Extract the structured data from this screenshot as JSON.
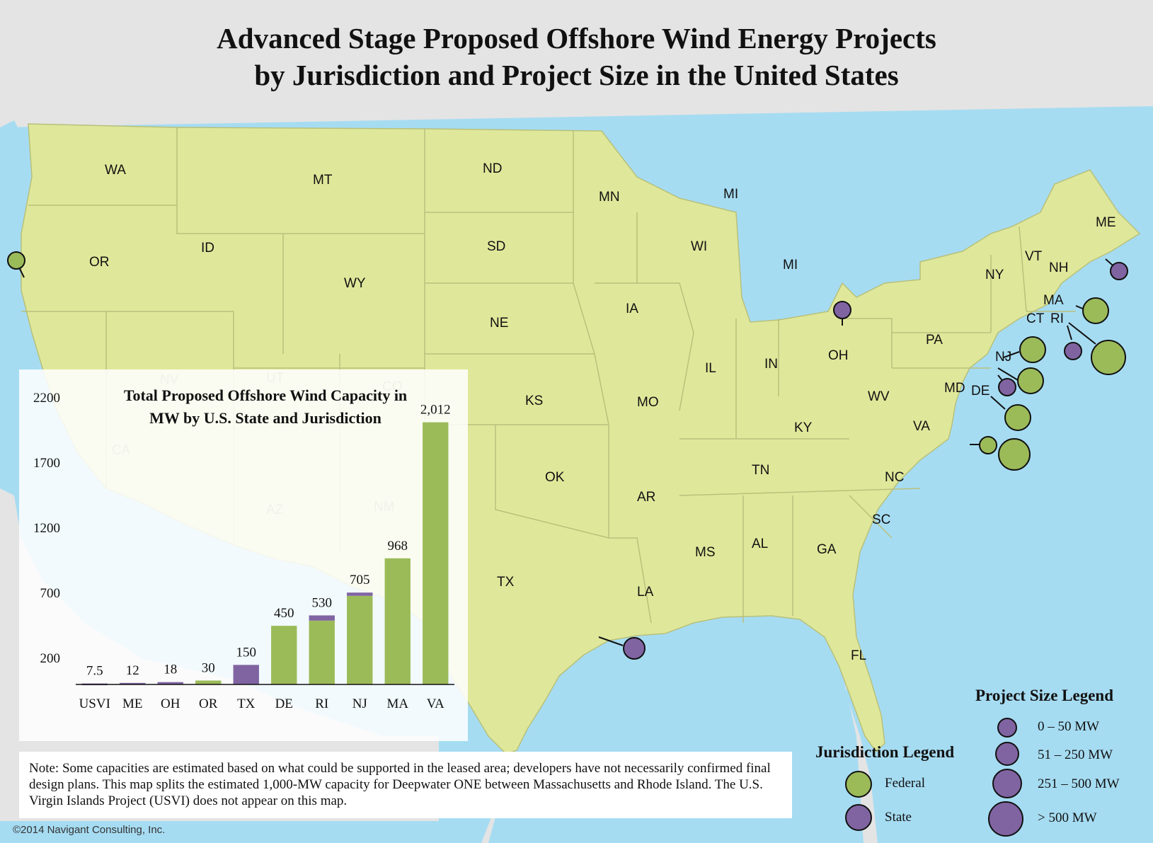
{
  "title": {
    "line1": "Advanced Stage Proposed Offshore Wind Energy Projects",
    "line2": "by Jurisdiction and Project Size in the United States"
  },
  "map": {
    "state_labels": [
      "WA",
      "OR",
      "ID",
      "MT",
      "WY",
      "NV",
      "UT",
      "CO",
      "CA",
      "AZ",
      "NM",
      "ND",
      "SD",
      "NE",
      "KS",
      "OK",
      "TX",
      "MN",
      "IA",
      "MO",
      "AR",
      "LA",
      "WI",
      "IL",
      "MI",
      "MI",
      "IN",
      "OH",
      "KY",
      "TN",
      "MS",
      "AL",
      "GA",
      "FL",
      "SC",
      "NC",
      "VA",
      "WV",
      "PA",
      "NY",
      "VT",
      "NH",
      "ME",
      "MA",
      "CT",
      "RI",
      "NJ",
      "DE",
      "MD"
    ],
    "colors": {
      "land": "#dfe89a",
      "water": "#a6dcf2",
      "canada": "#e4e4e4",
      "federal": "#9bbb59",
      "state": "#8064a2"
    },
    "project_markers": [
      {
        "state": "OR",
        "jurisdiction": "Federal",
        "size_class": "0 – 50 MW"
      },
      {
        "state": "OH",
        "jurisdiction": "State",
        "size_class": "0 – 50 MW"
      },
      {
        "state": "ME",
        "jurisdiction": "State",
        "size_class": "0 – 50 MW"
      },
      {
        "state": "MA",
        "jurisdiction": "Federal",
        "size_class": "251 – 500 MW"
      },
      {
        "state": "RI",
        "jurisdiction": "State",
        "size_class": "0 – 50 MW"
      },
      {
        "state": "MA/RI",
        "jurisdiction": "Federal",
        "size_class": "> 500 MW"
      },
      {
        "state": "NJ",
        "jurisdiction": "Federal",
        "size_class": "251 – 500 MW"
      },
      {
        "state": "NJ",
        "jurisdiction": "Federal",
        "size_class": "251 – 500 MW"
      },
      {
        "state": "NJ",
        "jurisdiction": "State",
        "size_class": "0 – 50 MW"
      },
      {
        "state": "DE",
        "jurisdiction": "Federal",
        "size_class": "251 – 500 MW"
      },
      {
        "state": "VA",
        "jurisdiction": "Federal",
        "size_class": "0 – 50 MW"
      },
      {
        "state": "VA",
        "jurisdiction": "Federal",
        "size_class": "> 500 MW"
      },
      {
        "state": "TX",
        "jurisdiction": "State",
        "size_class": "51 – 250 MW"
      }
    ]
  },
  "chart_data": {
    "type": "bar",
    "title_line1": "Total Proposed Offshore Wind Capacity in",
    "title_line2": "MW by U.S. State and Jurisdiction",
    "categories": [
      "USVI",
      "ME",
      "OH",
      "OR",
      "TX",
      "DE",
      "RI",
      "NJ",
      "MA",
      "VA"
    ],
    "value_labels": [
      "7.5",
      "12",
      "18",
      "30",
      "150",
      "450",
      "530",
      "705",
      "968",
      "2,012"
    ],
    "series": [
      {
        "name": "Federal",
        "color": "#9bbb59",
        "values": [
          0,
          0,
          0,
          30,
          0,
          450,
          490,
          680,
          968,
          2012
        ]
      },
      {
        "name": "State",
        "color": "#8064a2",
        "values": [
          7.5,
          12,
          18,
          0,
          150,
          0,
          40,
          25,
          0,
          0
        ]
      }
    ],
    "yticks": [
      200,
      700,
      1200,
      1700,
      2200
    ],
    "ylim": [
      0,
      2200
    ]
  },
  "jurisdiction_legend": {
    "title": "Jurisdiction  Legend",
    "items": [
      {
        "label": "Federal",
        "color": "#9bbb59"
      },
      {
        "label": "State",
        "color": "#8064a2"
      }
    ]
  },
  "size_legend": {
    "title": "Project Size Legend",
    "color": "#8064a2",
    "items": [
      {
        "label": "0 – 50 MW"
      },
      {
        "label": "51 – 250 MW"
      },
      {
        "label": "251 – 500 MW"
      },
      {
        "label": "> 500 MW"
      }
    ]
  },
  "note": "Note: Some capacities are estimated based on what could be supported in the leased area; developers have not necessarily confirmed final design plans. This map splits the estimated 1,000-MW capacity for Deepwater ONE between Massachusetts and Rhode Island. The U.S. Virgin Islands Project (USVI) does not appear on this map.",
  "copyright": "©2014 Navigant Consulting, Inc."
}
